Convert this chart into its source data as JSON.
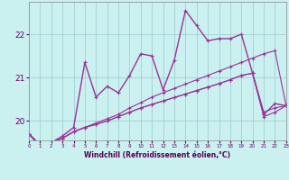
{
  "xlabel": "Windchill (Refroidissement éolien,°C)",
  "bg_color": "#caf0f0",
  "grid_color": "#99cccc",
  "line_color": "#993399",
  "x_ticks": [
    0,
    1,
    2,
    3,
    4,
    5,
    6,
    7,
    8,
    9,
    10,
    11,
    12,
    13,
    14,
    15,
    16,
    17,
    18,
    19,
    20,
    21,
    22,
    23
  ],
  "y_ticks": [
    20,
    21,
    22
  ],
  "xlim": [
    0,
    23
  ],
  "ylim": [
    19.55,
    22.75
  ],
  "series": [
    [
      19.7,
      19.45,
      19.5,
      19.6,
      19.75,
      19.85,
      19.95,
      20.05,
      20.15,
      20.3,
      20.42,
      20.55,
      20.65,
      20.75,
      20.85,
      20.95,
      21.05,
      21.15,
      21.25,
      21.35,
      21.45,
      21.55,
      21.62,
      20.35
    ],
    [
      19.7,
      19.45,
      19.5,
      19.6,
      19.75,
      19.85,
      19.92,
      20.0,
      20.1,
      20.2,
      20.3,
      20.38,
      20.46,
      20.54,
      20.62,
      20.7,
      20.78,
      20.86,
      20.95,
      21.05,
      21.1,
      20.2,
      20.3,
      20.35
    ],
    [
      19.7,
      19.45,
      19.5,
      19.6,
      19.75,
      19.85,
      19.92,
      20.0,
      20.1,
      20.2,
      20.3,
      20.38,
      20.46,
      20.54,
      20.62,
      20.7,
      20.78,
      20.86,
      20.95,
      21.05,
      21.1,
      20.1,
      20.2,
      20.35
    ],
    [
      19.7,
      19.4,
      19.5,
      19.65,
      19.85,
      21.35,
      20.55,
      20.8,
      20.65,
      21.05,
      21.55,
      21.5,
      20.72,
      21.4,
      22.55,
      22.2,
      21.85,
      21.9,
      21.9,
      22.0,
      21.1,
      20.15,
      20.4,
      20.35
    ]
  ]
}
